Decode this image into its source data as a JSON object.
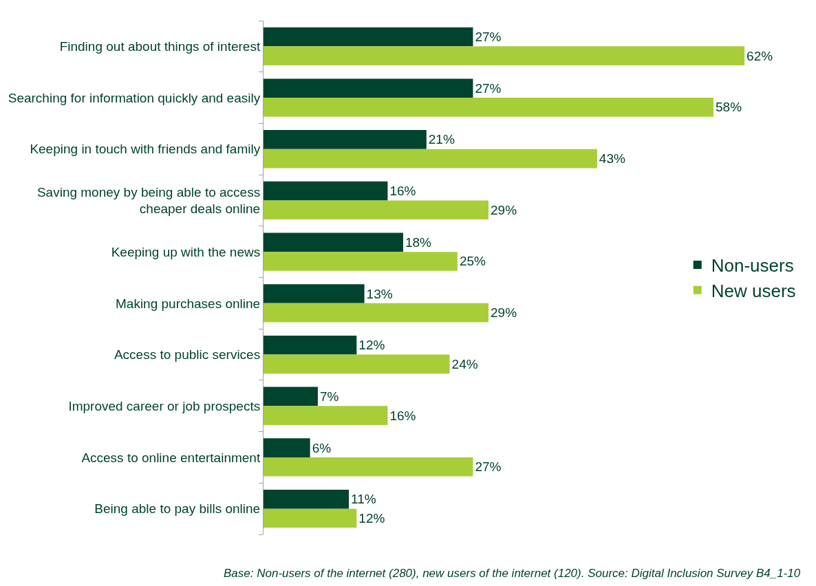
{
  "chart_data": {
    "type": "bar",
    "orientation": "horizontal",
    "categories": [
      "Finding out about things of interest",
      "Searching for information quickly and easily",
      "Keeping in touch with friends and family",
      "Saving money by being able to access cheaper deals online",
      "Keeping up with the news",
      "Making purchases online",
      "Access to public services",
      "Improved career or job prospects",
      "Access to online entertainment",
      "Being able to pay bills online"
    ],
    "series": [
      {
        "name": "Non-users",
        "color": "#00432f",
        "values": [
          27,
          27,
          21,
          16,
          18,
          13,
          12,
          7,
          6,
          11
        ],
        "value_labels": [
          "27%",
          "27%",
          "21%",
          "16%",
          "18%",
          "13%",
          "12%",
          "7%",
          "6%",
          "11%"
        ]
      },
      {
        "name": "New users",
        "color": "#a7ce39",
        "values": [
          62,
          58,
          43,
          29,
          25,
          29,
          24,
          16,
          27,
          12
        ],
        "value_labels": [
          "62%",
          "58%",
          "43%",
          "29%",
          "25%",
          "29%",
          "24%",
          "16%",
          "27%",
          "12%"
        ]
      }
    ],
    "legend": "right",
    "annotations": [
      "Base: Non-users of the internet (280), new users of the internet (120). Source: Digital Inclusion Survey B4_1-10"
    ]
  }
}
